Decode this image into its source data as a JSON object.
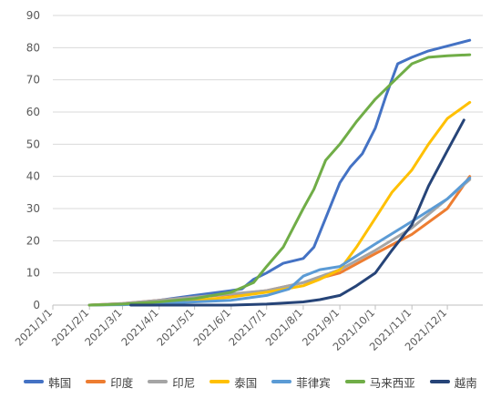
{
  "chart_data": {
    "type": "line",
    "title": "",
    "xlabel": "",
    "ylabel": "",
    "ylim": [
      0,
      90
    ],
    "yticks": [
      "0",
      "10",
      "20",
      "30",
      "40",
      "50",
      "60",
      "70",
      "80",
      "90"
    ],
    "xticks": [
      "2021/1/1",
      "2021/2/1",
      "2021/3/1",
      "2021/4/1",
      "2021/5/1",
      "2021/6/1",
      "2021/7/1",
      "2021/8/1",
      "2021/9/1",
      "2021/10/1",
      "2021/11/1",
      "2021/12/1"
    ],
    "grid": true,
    "legend_position": "bottom",
    "series": [
      {
        "name": "韩国",
        "color": "#4472c4",
        "x": [
          "2021-02-01",
          "2021-03-01",
          "2021-04-01",
          "2021-05-01",
          "2021-06-01",
          "2021-06-10",
          "2021-06-20",
          "2021-07-01",
          "2021-07-15",
          "2021-08-01",
          "2021-08-10",
          "2021-08-20",
          "2021-09-01",
          "2021-09-10",
          "2021-09-20",
          "2021-10-01",
          "2021-10-10",
          "2021-10-20",
          "2021-11-01",
          "2021-11-15",
          "2021-12-01",
          "2021-12-20"
        ],
        "y": [
          0,
          0.3,
          1.5,
          3,
          4.5,
          5,
          8,
          10,
          13,
          14.5,
          18,
          27,
          38,
          43,
          47,
          55,
          65,
          75,
          77,
          79,
          80.5,
          82.3
        ]
      },
      {
        "name": "印度",
        "color": "#ed7d31",
        "x": [
          "2021-02-01",
          "2021-03-01",
          "2021-04-01",
          "2021-05-01",
          "2021-06-01",
          "2021-07-01",
          "2021-08-01",
          "2021-09-01",
          "2021-10-01",
          "2021-11-01",
          "2021-12-01",
          "2021-12-20"
        ],
        "y": [
          0,
          0.5,
          1.5,
          2.5,
          3.3,
          4.5,
          7,
          10,
          16,
          22,
          30,
          40
        ]
      },
      {
        "name": "印尼",
        "color": "#a5a5a5",
        "x": [
          "2021-02-01",
          "2021-03-01",
          "2021-04-01",
          "2021-05-01",
          "2021-06-01",
          "2021-07-01",
          "2021-08-01",
          "2021-09-01",
          "2021-10-01",
          "2021-11-01",
          "2021-12-01",
          "2021-12-20"
        ],
        "y": [
          0,
          0.5,
          1.5,
          2.5,
          3.5,
          4.5,
          7,
          11,
          17,
          24,
          33,
          39
        ]
      },
      {
        "name": "泰国",
        "color": "#ffc000",
        "x": [
          "2021-02-01",
          "2021-03-01",
          "2021-04-01",
          "2021-05-01",
          "2021-06-01",
          "2021-07-01",
          "2021-08-01",
          "2021-08-15",
          "2021-09-01",
          "2021-09-15",
          "2021-10-01",
          "2021-10-15",
          "2021-11-01",
          "2021-11-15",
          "2021-12-01",
          "2021-12-20"
        ],
        "y": [
          0,
          0.2,
          0.5,
          1.5,
          2.5,
          4,
          6,
          8,
          11,
          18,
          27,
          35,
          42,
          50,
          58,
          63
        ]
      },
      {
        "name": "菲律宾",
        "color": "#5b9bd5",
        "x": [
          "2021-02-01",
          "2021-03-01",
          "2021-04-01",
          "2021-05-01",
          "2021-06-01",
          "2021-07-01",
          "2021-07-20",
          "2021-08-01",
          "2021-08-15",
          "2021-09-01",
          "2021-10-01",
          "2021-11-01",
          "2021-12-01",
          "2021-12-20"
        ],
        "y": [
          0,
          0.1,
          0.5,
          1,
          1.5,
          3,
          5,
          9,
          11,
          12,
          19,
          26,
          33,
          39.5
        ]
      },
      {
        "name": "马来西亚",
        "color": "#70ad47",
        "x": [
          "2021-02-01",
          "2021-03-01",
          "2021-04-01",
          "2021-05-01",
          "2021-06-01",
          "2021-06-20",
          "2021-07-01",
          "2021-07-15",
          "2021-08-01",
          "2021-08-10",
          "2021-08-20",
          "2021-09-01",
          "2021-09-15",
          "2021-10-01",
          "2021-10-15",
          "2021-11-01",
          "2021-11-15",
          "2021-12-01",
          "2021-12-20"
        ],
        "y": [
          0,
          0.3,
          1,
          2,
          4,
          7,
          12,
          18,
          30,
          36,
          45,
          50,
          57,
          64,
          69,
          75,
          77,
          77.5,
          77.8
        ]
      },
      {
        "name": "越南",
        "color": "#264478",
        "x": [
          "2021-03-08",
          "2021-04-01",
          "2021-05-01",
          "2021-06-01",
          "2021-07-01",
          "2021-08-01",
          "2021-08-15",
          "2021-09-01",
          "2021-09-15",
          "2021-10-01",
          "2021-10-15",
          "2021-11-01",
          "2021-11-15",
          "2021-12-01",
          "2021-12-15"
        ],
        "y": [
          0,
          0,
          0,
          0,
          0.3,
          1,
          1.7,
          3,
          6,
          10,
          17,
          25,
          37,
          48,
          57.5
        ]
      }
    ]
  }
}
